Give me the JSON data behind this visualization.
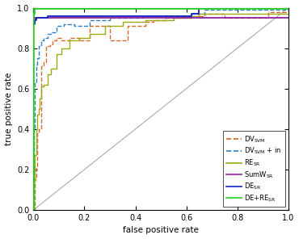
{
  "xlabel": "false positive rate",
  "ylabel": "true positive rate",
  "xlim": [
    0,
    1
  ],
  "ylim": [
    0,
    1
  ],
  "xticks": [
    0,
    0.2,
    0.4,
    0.6,
    0.8,
    1
  ],
  "yticks": [
    0,
    0.2,
    0.4,
    0.6,
    0.8,
    1
  ],
  "curves": {
    "DV_SVM": {
      "color": "#d4692b",
      "linestyle": "dashed",
      "linewidth": 1.0,
      "x": [
        0,
        0.005,
        0.005,
        0.01,
        0.01,
        0.015,
        0.015,
        0.02,
        0.02,
        0.03,
        0.03,
        0.04,
        0.04,
        0.05,
        0.05,
        0.065,
        0.065,
        0.075,
        0.075,
        0.09,
        0.09,
        0.11,
        0.11,
        0.14,
        0.14,
        0.18,
        0.18,
        0.22,
        0.22,
        0.3,
        0.3,
        0.37,
        0.37,
        0.44,
        0.44,
        0.47,
        0.47,
        0.52,
        0.52,
        0.62,
        0.62,
        0.67,
        0.67,
        0.75,
        0.75,
        0.92,
        0.92,
        1.0
      ],
      "y": [
        0,
        0,
        0.15,
        0.15,
        0.21,
        0.21,
        0.38,
        0.38,
        0.4,
        0.4,
        0.71,
        0.71,
        0.73,
        0.73,
        0.81,
        0.81,
        0.82,
        0.82,
        0.84,
        0.84,
        0.85,
        0.85,
        0.84,
        0.84,
        0.85,
        0.85,
        0.84,
        0.84,
        0.91,
        0.91,
        0.84,
        0.84,
        0.91,
        0.91,
        0.93,
        0.93,
        0.94,
        0.94,
        0.95,
        0.95,
        0.96,
        0.96,
        0.97,
        0.97,
        0.95,
        0.95,
        0.98,
        0.98
      ]
    },
    "DV_SVM_in": {
      "color": "#3080c0",
      "linestyle": "dashed",
      "linewidth": 1.0,
      "x": [
        0,
        0.003,
        0.003,
        0.005,
        0.005,
        0.01,
        0.01,
        0.015,
        0.015,
        0.02,
        0.02,
        0.03,
        0.03,
        0.04,
        0.04,
        0.055,
        0.055,
        0.07,
        0.07,
        0.09,
        0.09,
        0.12,
        0.12,
        0.16,
        0.16,
        0.22,
        0.22,
        0.3,
        0.3,
        0.43,
        0.43,
        0.62,
        0.62,
        0.67,
        0.67,
        1.0
      ],
      "y": [
        0,
        0,
        0.4,
        0.4,
        0.63,
        0.63,
        0.72,
        0.72,
        0.75,
        0.75,
        0.81,
        0.81,
        0.84,
        0.84,
        0.85,
        0.85,
        0.87,
        0.87,
        0.88,
        0.88,
        0.91,
        0.91,
        0.92,
        0.92,
        0.91,
        0.91,
        0.94,
        0.94,
        0.95,
        0.95,
        0.96,
        0.96,
        0.97,
        0.97,
        0.99,
        0.99
      ]
    },
    "RE_SR": {
      "color": "#9aaa10",
      "linestyle": "solid",
      "linewidth": 1.0,
      "x": [
        0,
        0.003,
        0.003,
        0.005,
        0.005,
        0.01,
        0.01,
        0.015,
        0.015,
        0.02,
        0.02,
        0.025,
        0.025,
        0.03,
        0.03,
        0.04,
        0.04,
        0.055,
        0.055,
        0.07,
        0.07,
        0.09,
        0.09,
        0.11,
        0.11,
        0.14,
        0.14,
        0.18,
        0.18,
        0.22,
        0.22,
        0.28,
        0.28,
        0.35,
        0.35,
        0.44,
        0.44,
        0.55,
        0.55,
        0.62,
        0.62,
        0.65,
        0.65,
        1.0
      ],
      "y": [
        0,
        0,
        0.14,
        0.14,
        0.27,
        0.27,
        0.4,
        0.4,
        0.47,
        0.47,
        0.5,
        0.5,
        0.55,
        0.55,
        0.61,
        0.61,
        0.62,
        0.62,
        0.67,
        0.67,
        0.7,
        0.7,
        0.77,
        0.77,
        0.8,
        0.8,
        0.84,
        0.84,
        0.85,
        0.85,
        0.87,
        0.87,
        0.91,
        0.91,
        0.93,
        0.93,
        0.94,
        0.94,
        0.95,
        0.95,
        0.96,
        0.96,
        0.97,
        0.97
      ]
    },
    "SumW_SR": {
      "color": "#9020a0",
      "linestyle": "solid",
      "linewidth": 1.3,
      "x": [
        0,
        0.0,
        0.0,
        0.005,
        0.005,
        1.0
      ],
      "y": [
        0,
        0,
        0.93,
        0.93,
        0.95,
        0.95
      ]
    },
    "DE_SR": {
      "color": "#1020c0",
      "linestyle": "solid",
      "linewidth": 1.3,
      "x": [
        0,
        0.0,
        0.0,
        0.005,
        0.005,
        0.01,
        0.01,
        0.055,
        0.055,
        0.62,
        0.62,
        0.65,
        0.65,
        1.0
      ],
      "y": [
        0,
        0,
        0.92,
        0.92,
        0.94,
        0.94,
        0.95,
        0.95,
        0.96,
        0.96,
        0.97,
        0.97,
        1.0,
        1.0
      ]
    },
    "DE_RE_SR": {
      "color": "#20d020",
      "linestyle": "solid",
      "linewidth": 1.8,
      "x": [
        0,
        0.0,
        0.0,
        0.002,
        0.002,
        1.0
      ],
      "y": [
        0,
        0,
        0.97,
        0.97,
        1.0,
        1.0
      ]
    }
  }
}
